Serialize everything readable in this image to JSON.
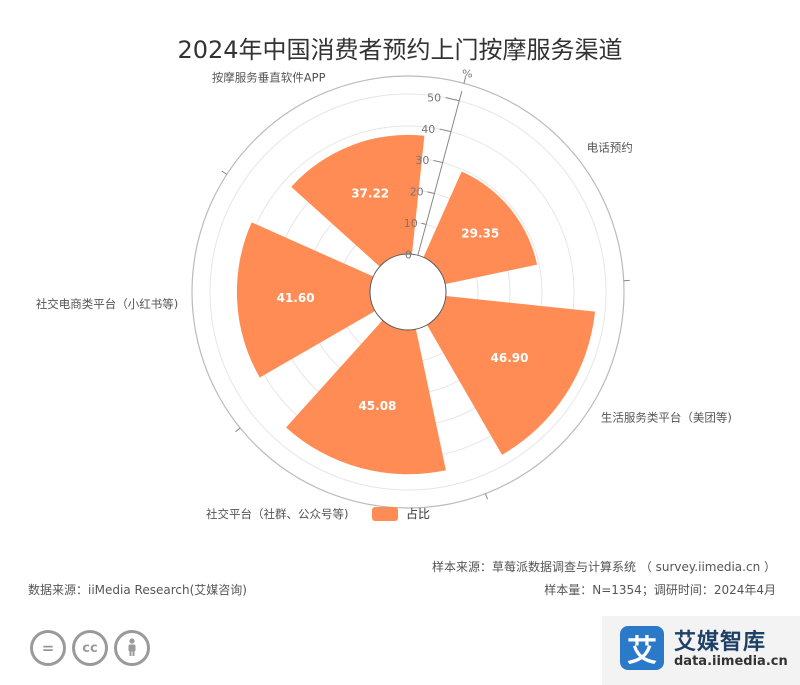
{
  "title": "2024年中国消费者预约上门按摩服务渠道",
  "legend": {
    "label": "占比"
  },
  "footer": {
    "source_left": "数据来源：iiMedia Research(艾媒咨询)",
    "sample_source": "样本来源：草莓派数据调查与计算系统 （ survey.iimedia.cn ）",
    "sample_info": "样本量：N=1354；调研时间：2024年4月"
  },
  "logo": {
    "cn": "艾媒智库",
    "url": "data.iimedia.cn",
    "mark": "艾"
  },
  "license_icons": [
    "equal-icon",
    "cc-icon",
    "person-icon"
  ],
  "colors": {
    "bar": "#ff8c55",
    "axis": "#aaaaaa",
    "grid": "#e6e6e6"
  },
  "chart_data": {
    "type": "bar",
    "coordinate_system": "polar",
    "categories": [
      "电话预约",
      "生活服务类平台（美团等)",
      "社交平台（社群、公众号等)",
      "社交电商类平台（小红书等)",
      "按摩服务垂直软件APP"
    ],
    "series": [
      {
        "name": "占比",
        "values": [
          29.35,
          46.9,
          45.08,
          41.6,
          37.22
        ]
      }
    ],
    "radial_axis": {
      "unit": "%",
      "range": [
        0,
        50
      ],
      "ticks": [
        0,
        10,
        20,
        30,
        40,
        50
      ]
    },
    "grid": true,
    "legend_position": "bottom"
  }
}
